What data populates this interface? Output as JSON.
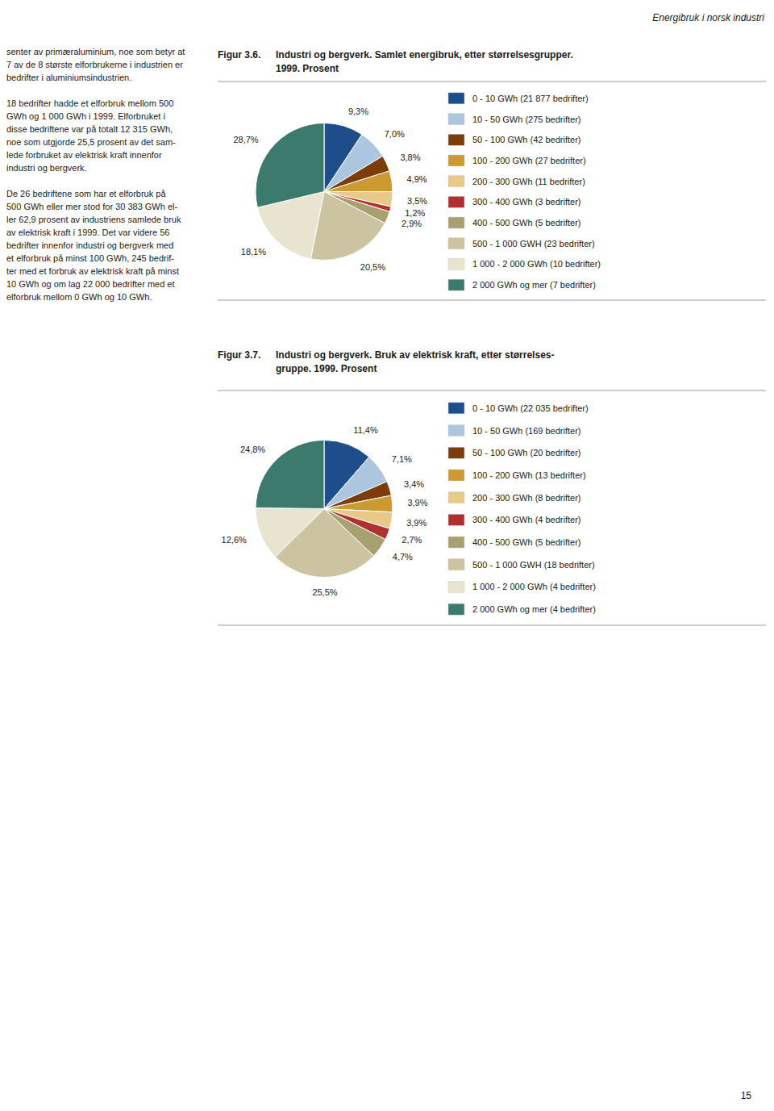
{
  "header": "Energibruk i norsk industri",
  "page_number": "15",
  "body_text": [
    [
      "senter av primæraluminium, noe som betyr at",
      "7 av de 8 største elforbrukerne i industrien er",
      "bedrifter i aluminiumsindustrien."
    ],
    [
      "18 bedrifter hadde et elforbruk mellom 500",
      "GWh og 1 000 GWh i 1999. Elforbruket i",
      "disse bedriftene var på totalt 12 315 GWh,",
      "noe som utgjorde 25,5 prosent av det sam-",
      "lede forbruket av elektrisk kraft innenfor",
      "industri og bergverk."
    ],
    [
      "De 26 bedriftene som har et elforbruk på",
      "500 GWh eller mer stod for 30 383 GWh el-",
      "ler 62,9 prosent av industriens samlede bruk",
      "av elektrisk kraft i 1999. Det var videre 56",
      "bedrifter innenfor industri og bergverk med",
      "et elforbruk på minst 100 GWh, 245 bedrif-",
      "ter med et forbruk av elektrisk kraft på minst",
      "10 GWh og om lag 22 000 bedrifter med et",
      "elforbruk mellom 0 GWh og 10 GWh."
    ]
  ],
  "chart_data": [
    {
      "type": "pie",
      "title": "Figur 3.6.",
      "subtitle": [
        "Industri og bergverk. Samlet energibruk, etter størrelsesgrupper.",
        "1999. Prosent"
      ],
      "categories": [
        "0 - 10 GWh (21 877 bedrifter)",
        "10 - 50 GWh (275 bedrifter)",
        "50 - 100 GWh (42 bedrifter)",
        "100 - 200 GWh (27 bedrifter)",
        "200 - 300 GWh (11 bedrifter)",
        "300 - 400 GWh (3 bedrifter)",
        "400 - 500 GWh (5 bedrifter)",
        "500 - 1 000 GWH (23 bedrifter)",
        "1 000 - 2 000 GWh (10 bedrifter)",
        "2 000 GWh og mer (7 bedrifter)"
      ],
      "values": [
        9.3,
        7.0,
        3.8,
        4.9,
        3.5,
        1.2,
        2.9,
        20.5,
        18.1,
        28.7
      ],
      "value_labels": [
        "9,3%",
        "7,0%",
        "3,8%",
        "4,9%",
        "3,5%",
        "1,2%",
        "2,9%",
        "20,5%",
        "18,1%",
        "28,7%"
      ],
      "colors": [
        "#1e4d8c",
        "#adc6e0",
        "#7b3d0a",
        "#cc9933",
        "#e8c98a",
        "#b03030",
        "#a8a070",
        "#ccc4a0",
        "#e8e4d0",
        "#3d7a6e"
      ],
      "data_labels": true,
      "legend": "right"
    },
    {
      "type": "pie",
      "title": "Figur 3.7.",
      "subtitle": [
        "Industri og bergverk. Bruk av elektrisk kraft, etter størrelses-",
        "gruppe. 1999. Prosent"
      ],
      "categories": [
        "0 - 10 GWh (22 035 bedrifter)",
        "10 - 50 GWh (169 bedrifter)",
        "50 - 100 GWh (20 bedrifter)",
        "100 - 200 GWh (13 bedrifter)",
        "200 - 300 GWh (8 bedrifter)",
        "300 - 400 GWh (4 bedrifter)",
        "400 - 500 GWh (5 bedrifter)",
        "500 - 1 000 GWH (18 bedrifter)",
        "1 000 - 2 000 GWh (4 bedrifter)",
        "2 000 GWh og mer (4 bedrifter)"
      ],
      "values": [
        11.4,
        7.1,
        3.4,
        3.9,
        3.9,
        2.7,
        4.7,
        25.5,
        12.6,
        24.8
      ],
      "value_labels": [
        "11,4%",
        "7,1%",
        "3,4%",
        "3,9%",
        "3,9%",
        "2,7%",
        "4,7%",
        "25,5%",
        "12,6%",
        "24,8%"
      ],
      "colors": [
        "#1e4d8c",
        "#adc6e0",
        "#7b3d0a",
        "#cc9933",
        "#e8c98a",
        "#b03030",
        "#a8a070",
        "#ccc4a0",
        "#e8e4d0",
        "#3d7a6e"
      ],
      "data_labels": true,
      "legend": "right"
    }
  ]
}
